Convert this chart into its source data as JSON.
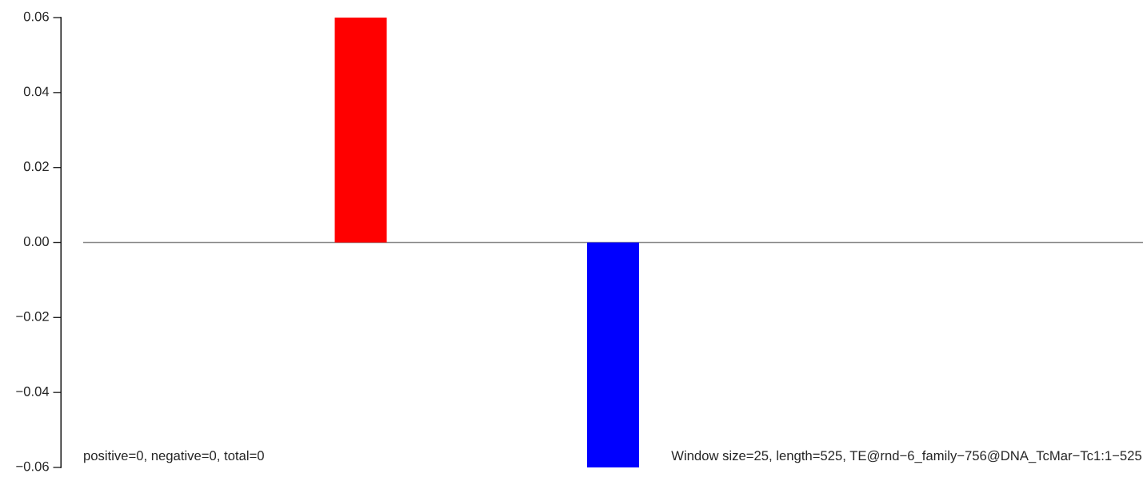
{
  "chart_data": {
    "type": "bar",
    "categories": [
      null,
      null
    ],
    "values": [
      0.06,
      -0.06
    ],
    "colors": [
      "#ff0000",
      "#0000ff"
    ],
    "ylim": [
      -0.06,
      0.06
    ],
    "yticks": [
      {
        "value": 0.06,
        "label": "0.06"
      },
      {
        "value": 0.04,
        "label": "0.04"
      },
      {
        "value": 0.02,
        "label": "0.02"
      },
      {
        "value": 0,
        "label": "0.00"
      },
      {
        "value": -0.02,
        "label": "−0.02"
      },
      {
        "value": -0.04,
        "label": "−0.04"
      },
      {
        "value": -0.06,
        "label": "−0.06"
      }
    ],
    "ref_lines": [
      {
        "axis": "y",
        "value": 0,
        "color": "#888888"
      }
    ],
    "annotations": [
      "positive=0, negative=0, total=0",
      "Window size=25, length=525, TE@rnd−6_family−756@DNA_TcMar−Tc1:1−525"
    ],
    "tick_labels": "y",
    "grid": false,
    "legend": false
  }
}
